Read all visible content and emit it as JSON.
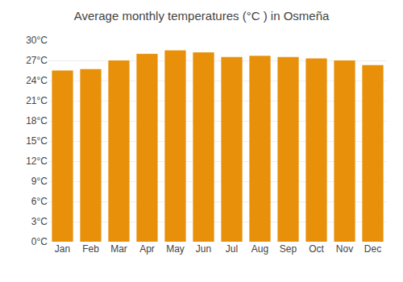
{
  "chart_data": {
    "type": "bar",
    "title": "Average monthly temperatures (°C ) in Osmeña",
    "categories": [
      "Jan",
      "Feb",
      "Mar",
      "Apr",
      "May",
      "Jun",
      "Jul",
      "Aug",
      "Sep",
      "Oct",
      "Nov",
      "Dec"
    ],
    "values": [
      25.5,
      25.7,
      27.0,
      28.0,
      28.5,
      28.2,
      27.5,
      27.7,
      27.5,
      27.3,
      27.0,
      26.3
    ],
    "color": "#E8900A",
    "ylim": [
      0,
      30
    ],
    "yticks": [
      {
        "value": 0,
        "label": "0°C"
      },
      {
        "value": 3,
        "label": "3°C"
      },
      {
        "value": 6,
        "label": "6°C"
      },
      {
        "value": 9,
        "label": "9°C"
      },
      {
        "value": 12,
        "label": "12°C"
      },
      {
        "value": 15,
        "label": "15°C"
      },
      {
        "value": 18,
        "label": "18°C"
      },
      {
        "value": 21,
        "label": "21°C"
      },
      {
        "value": 24,
        "label": "24°C"
      },
      {
        "value": 27,
        "label": "27°C"
      },
      {
        "value": 30,
        "label": "30°C"
      }
    ],
    "grid": true
  }
}
